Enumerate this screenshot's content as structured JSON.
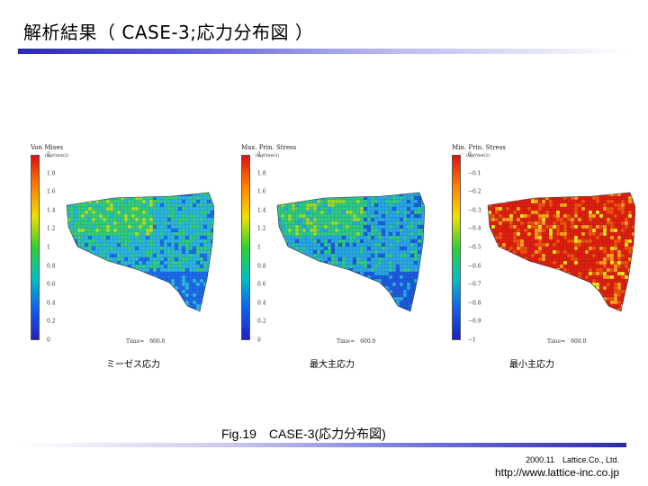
{
  "slide": {
    "title": "解析結果（ CASE-3;応力分布図 ）",
    "figure_caption": "Fig.19　CASE-3(応力分布図)",
    "footer_line1": "2000.11　Lattice.Co., Ltd.",
    "footer_line2": "http://www.lattice-inc.co.jp"
  },
  "panels": [
    {
      "plot_title": "Von Mises",
      "unit": "(kgf/mm2)",
      "ticks": [
        "2",
        "1.8",
        "1.6",
        "1.4",
        "1.2",
        "1",
        "0.8",
        "0.6",
        "0.4",
        "0.2",
        "0"
      ],
      "time_label": "Time=　600.0",
      "caption": "ミーゼス応力",
      "colormap": [
        "#e01010",
        "#ff8000",
        "#f0e000",
        "#30d030",
        "#00c0c0",
        "#1060f0",
        "#2020c0"
      ],
      "dominant_colors": [
        "#1e6cf0",
        "#2bb8e0",
        "#34d07c",
        "#a8e030"
      ]
    },
    {
      "plot_title": "Max. Prin. Stress",
      "unit": "(kgf/mm2)",
      "ticks": [
        "2",
        "1.8",
        "1.6",
        "1.4",
        "1.2",
        "1",
        "0.8",
        "0.6",
        "0.4",
        "0.2",
        "0"
      ],
      "time_label": "Time=　600.0",
      "caption": "最大主応力",
      "colormap": [
        "#e01010",
        "#ff8000",
        "#f0e000",
        "#30d030",
        "#00c0c0",
        "#1060f0",
        "#2020c0"
      ],
      "dominant_colors": [
        "#1e5ce0",
        "#2aa8e8",
        "#30cc88",
        "#98dc30"
      ]
    },
    {
      "plot_title": "Min. Prin. Stress",
      "unit": "(kgf/mm2)",
      "ticks": [
        "0",
        "−0.1",
        "−0.2",
        "−0.3",
        "−0.4",
        "−0.5",
        "−0.6",
        "−0.7",
        "−0.8",
        "−0.9",
        "−1"
      ],
      "time_label": "Time=　600.0",
      "caption": "最小主応力",
      "colormap": [
        "#e01010",
        "#ff8000",
        "#f0e000",
        "#30d030",
        "#00c0c0",
        "#1060f0",
        "#2020c0"
      ],
      "dominant_colors": [
        "#e02010",
        "#f05010",
        "#ffa020",
        "#f0e020"
      ]
    }
  ]
}
